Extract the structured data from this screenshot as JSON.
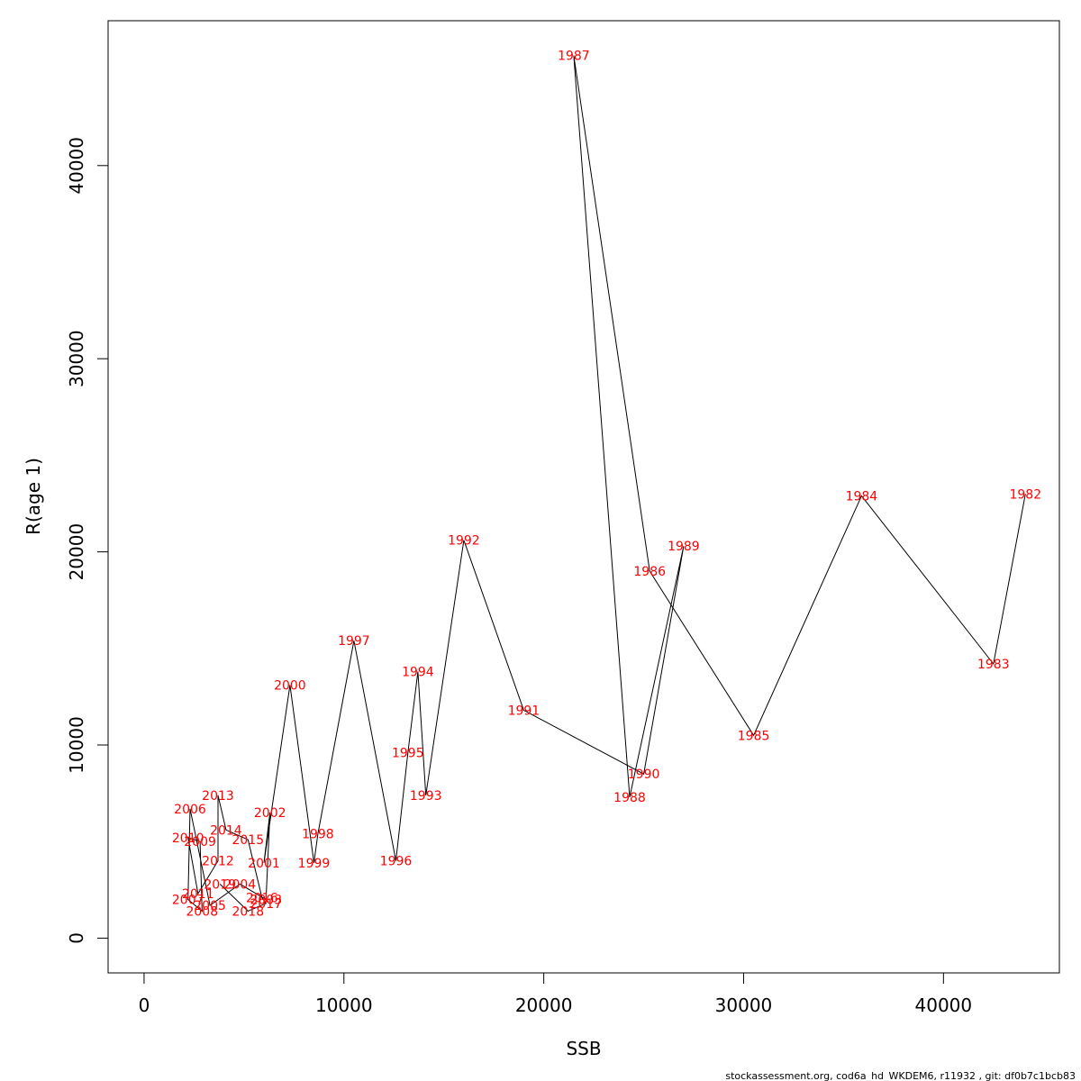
{
  "chart_data": {
    "type": "line",
    "xlabel": "SSB",
    "ylabel": "R(age 1)",
    "xlim": [
      -1800,
      45800
    ],
    "ylim": [
      -1800,
      47500
    ],
    "xticks": [
      0,
      10000,
      20000,
      30000,
      40000
    ],
    "yticks": [
      0,
      10000,
      20000,
      30000,
      40000
    ],
    "grid": false,
    "colors": {
      "line": "#000000",
      "labels": "#ff0000"
    },
    "points": [
      {
        "year": "1982",
        "x": 44100,
        "y": 23000
      },
      {
        "year": "1983",
        "x": 42500,
        "y": 14200
      },
      {
        "year": "1984",
        "x": 35900,
        "y": 22900
      },
      {
        "year": "1985",
        "x": 30500,
        "y": 10500
      },
      {
        "year": "1986",
        "x": 25300,
        "y": 19000
      },
      {
        "year": "1987",
        "x": 21500,
        "y": 45700
      },
      {
        "year": "1988",
        "x": 24300,
        "y": 7300
      },
      {
        "year": "1989",
        "x": 27000,
        "y": 20300
      },
      {
        "year": "1990",
        "x": 25000,
        "y": 8500
      },
      {
        "year": "1991",
        "x": 19000,
        "y": 11800
      },
      {
        "year": "1992",
        "x": 16000,
        "y": 20600
      },
      {
        "year": "1993",
        "x": 14100,
        "y": 7400
      },
      {
        "year": "1994",
        "x": 13700,
        "y": 13800
      },
      {
        "year": "1995",
        "x": 13200,
        "y": 9600
      },
      {
        "year": "1996",
        "x": 12600,
        "y": 4000
      },
      {
        "year": "1997",
        "x": 10500,
        "y": 15400
      },
      {
        "year": "1998",
        "x": 8700,
        "y": 5400
      },
      {
        "year": "1999",
        "x": 8500,
        "y": 3900
      },
      {
        "year": "2000",
        "x": 7300,
        "y": 13100
      },
      {
        "year": "2001",
        "x": 6000,
        "y": 3900
      },
      {
        "year": "2002",
        "x": 6300,
        "y": 6500
      },
      {
        "year": "2003",
        "x": 6100,
        "y": 2000
      },
      {
        "year": "2004",
        "x": 4800,
        "y": 2800
      },
      {
        "year": "2005",
        "x": 3300,
        "y": 1700
      },
      {
        "year": "2006",
        "x": 2300,
        "y": 6700
      },
      {
        "year": "2007",
        "x": 2200,
        "y": 2000
      },
      {
        "year": "2008",
        "x": 2900,
        "y": 1400
      },
      {
        "year": "2009",
        "x": 2800,
        "y": 5000
      },
      {
        "year": "2010",
        "x": 2200,
        "y": 5200
      },
      {
        "year": "2011",
        "x": 2700,
        "y": 2300
      },
      {
        "year": "2012",
        "x": 3700,
        "y": 4000
      },
      {
        "year": "2013",
        "x": 3700,
        "y": 7400
      },
      {
        "year": "2014",
        "x": 4100,
        "y": 5600
      },
      {
        "year": "2015",
        "x": 5200,
        "y": 5100
      },
      {
        "year": "2016",
        "x": 5900,
        "y": 2100
      },
      {
        "year": "2017",
        "x": 6100,
        "y": 1800
      },
      {
        "year": "2018",
        "x": 5200,
        "y": 1400
      },
      {
        "year": "2019",
        "x": 3800,
        "y": 2800
      }
    ]
  },
  "footer": {
    "text": "stockassessment.org, cod6a_hd_WKDEM6, r11932 , git: df0b7c1bcb83"
  }
}
